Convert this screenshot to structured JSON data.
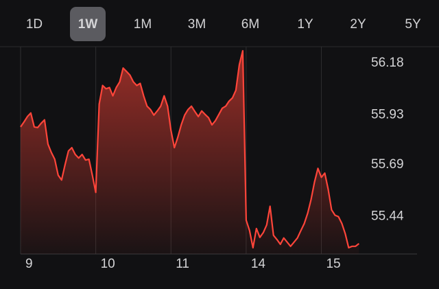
{
  "range_tabs": {
    "items": [
      "1D",
      "1W",
      "1M",
      "3M",
      "6M",
      "1Y",
      "2Y",
      "5Y"
    ],
    "selected": 1
  },
  "chart_data": {
    "type": "area",
    "color": "#ff453a",
    "values": [
      55.873,
      55.897,
      55.923,
      55.94,
      55.873,
      55.87,
      55.89,
      55.907,
      55.79,
      55.75,
      55.717,
      55.64,
      55.617,
      55.69,
      55.757,
      55.773,
      55.74,
      55.723,
      55.74,
      55.713,
      55.717,
      55.64,
      55.557,
      55.983,
      56.073,
      56.057,
      56.063,
      56.023,
      56.063,
      56.09,
      56.157,
      56.14,
      56.123,
      56.09,
      56.073,
      56.083,
      56.023,
      55.973,
      55.957,
      55.93,
      55.95,
      55.973,
      56.023,
      55.973,
      55.857,
      55.773,
      55.823,
      55.883,
      55.93,
      55.957,
      55.973,
      55.947,
      55.923,
      55.95,
      55.933,
      55.917,
      55.883,
      55.903,
      55.933,
      55.963,
      55.973,
      55.997,
      56.013,
      56.05,
      56.173,
      56.24,
      55.423,
      55.373,
      55.29,
      55.383,
      55.34,
      55.363,
      55.4,
      55.49,
      55.35,
      55.33,
      55.307,
      55.337,
      55.317,
      55.297,
      55.317,
      55.337,
      55.373,
      55.407,
      55.457,
      55.523,
      55.607,
      55.673,
      55.63,
      55.65,
      55.573,
      55.473,
      55.447,
      55.44,
      55.407,
      55.357,
      55.29,
      55.297,
      55.297,
      55.31
    ],
    "xlim": [
      0,
      116
    ],
    "xticks": [
      {
        "value": 0,
        "label": "9"
      },
      {
        "value": 22,
        "label": "10"
      },
      {
        "value": 44,
        "label": "11"
      },
      {
        "value": 66,
        "label": "14"
      },
      {
        "value": 88,
        "label": "15"
      }
    ],
    "ylim": [
      55.26,
      56.26
    ],
    "yticks": [
      56.18,
      55.93,
      55.69,
      55.44
    ]
  }
}
